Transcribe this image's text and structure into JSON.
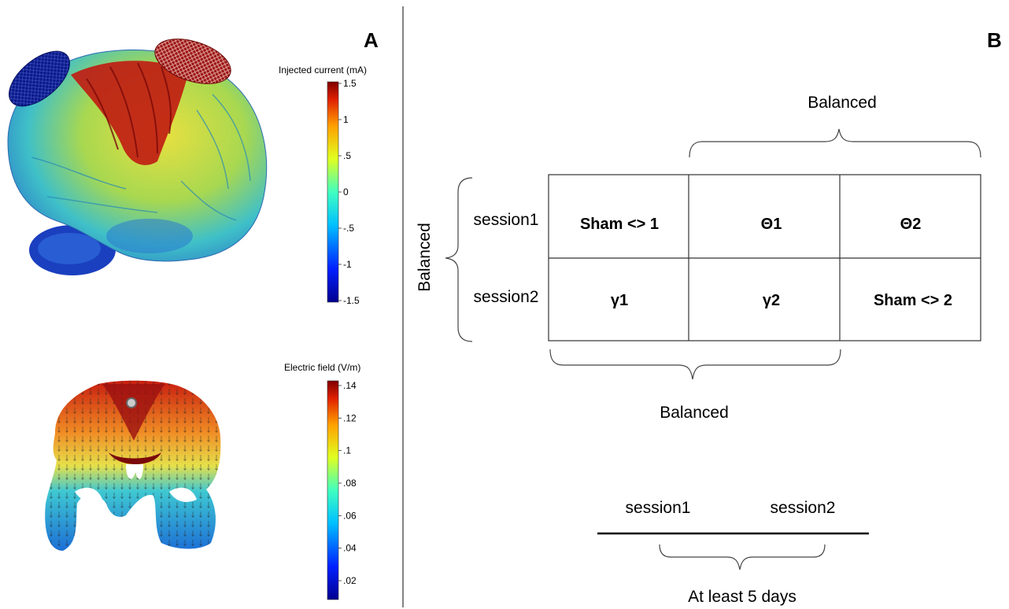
{
  "panel_a": {
    "label": "A",
    "colorbar_top": {
      "title": "Injected current (mA)",
      "ticks": [
        "1.5",
        "1",
        ".5",
        "0",
        "-.5",
        "-1",
        "-1.5"
      ]
    },
    "colorbar_bottom": {
      "title": "Electric field (V/m)",
      "ticks": [
        ".14",
        ".12",
        ".1",
        ".08",
        ".06",
        ".04",
        ".02"
      ]
    }
  },
  "panel_b": {
    "label": "B",
    "top_brace_label": "Balanced",
    "left_brace_label": "Balanced",
    "bottom_brace_label": "Balanced",
    "row_labels": [
      "session1",
      "session2"
    ],
    "grid": [
      [
        "Sham <> 1",
        "Θ1",
        "Θ2"
      ],
      [
        "γ1",
        "γ2",
        "Sham <> 2"
      ]
    ],
    "timeline": {
      "session_a": "session1",
      "session_b": "session2",
      "interval_label": "At least 5 days"
    }
  },
  "colors": {
    "dark_red": "#8b0000",
    "red": "#d7301f",
    "orange": "#f08a24",
    "yellow": "#e6e04a",
    "cyan": "#3fc8d2",
    "blue": "#1c5fd6",
    "navy": "#0b1a8c"
  }
}
